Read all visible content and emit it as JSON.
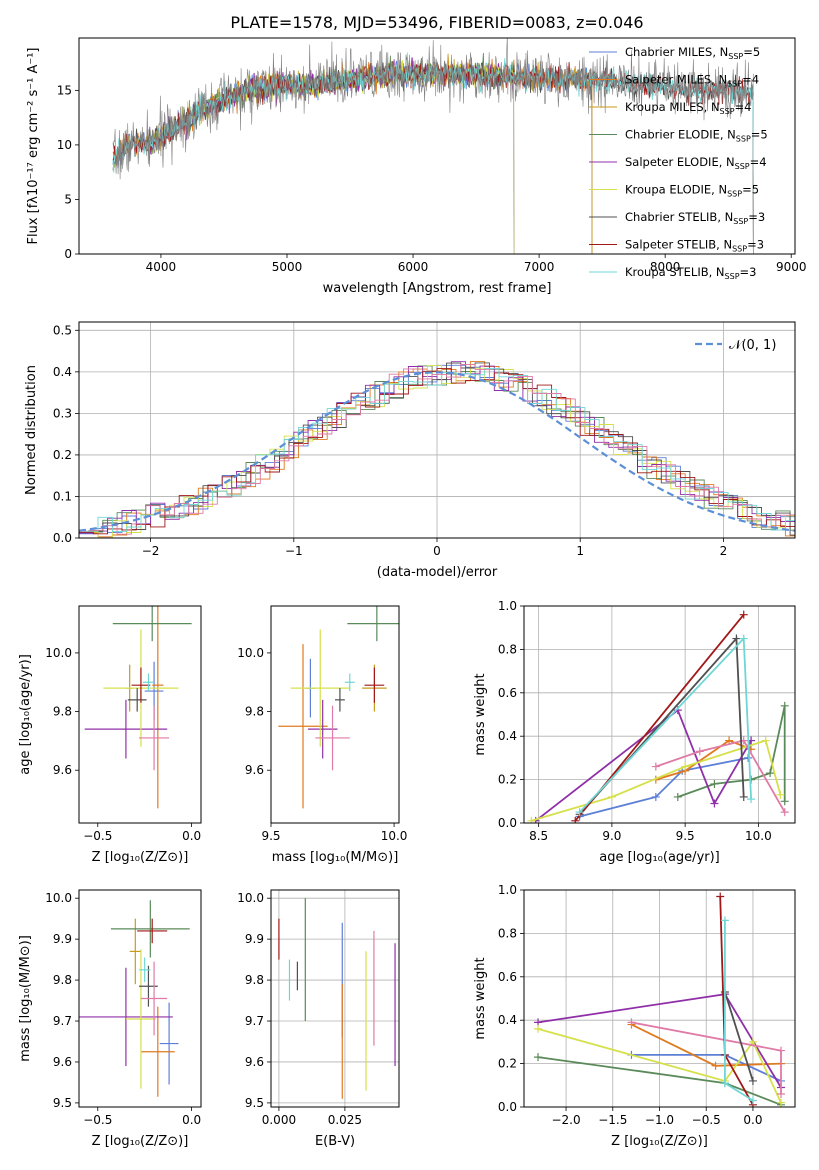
{
  "title": "PLATE=1578, MJD=53496, FIBERID=0083, z=0.046",
  "colors": [
    "#5b7fd6",
    "#e07a1f",
    "#c99a1a",
    "#5a8a5a",
    "#9030a8",
    "#d6e04a",
    "#505050",
    "#a01818",
    "#6fd6d6",
    "#e07aa6"
  ],
  "chart_data": [
    {
      "id": "spectrum",
      "type": "line",
      "title": "PLATE=1578, MJD=53496, FIBERID=0083, z=0.046",
      "xlabel": "wavelength [Angstrom, rest frame]",
      "ylabel": "Flux [fλ10⁻¹⁷ erg cm⁻² s⁻¹ A⁻¹]",
      "xlim": [
        3350,
        9030
      ],
      "ylim": [
        0,
        19.8
      ],
      "xticks": [
        4000,
        5000,
        6000,
        7000,
        8000,
        9000
      ],
      "yticks": [
        0,
        5,
        10,
        15
      ],
      "legend_position": "right",
      "continuum": [
        [
          3620,
          8.5
        ],
        [
          3700,
          9.5
        ],
        [
          3800,
          10.2
        ],
        [
          3900,
          10.0
        ],
        [
          4000,
          10.8
        ],
        [
          4150,
          12.0
        ],
        [
          4300,
          13.0
        ],
        [
          4500,
          14.2
        ],
        [
          4700,
          15.0
        ],
        [
          5000,
          15.5
        ],
        [
          5200,
          15.5
        ],
        [
          5500,
          16.0
        ],
        [
          5800,
          16.4
        ],
        [
          6100,
          16.6
        ],
        [
          6400,
          16.5
        ],
        [
          6700,
          16.3
        ],
        [
          7000,
          16.2
        ],
        [
          7300,
          16.0
        ],
        [
          7600,
          15.8
        ],
        [
          7900,
          15.4
        ],
        [
          8200,
          15.0
        ],
        [
          8500,
          15.0
        ],
        [
          8700,
          14.8
        ]
      ],
      "series": [
        {
          "name": "Chabrier MILES, N_SSP=5",
          "start": 3620,
          "end": 7420
        },
        {
          "name": "Salpeter MILES, N_SSP=4",
          "start": 3620,
          "end": 7420
        },
        {
          "name": "Kroupa MILES, N_SSP=4",
          "start": 3620,
          "end": 7420
        },
        {
          "name": "Chabrier ELODIE, N_SSP=5",
          "start": 3900,
          "end": 6800
        },
        {
          "name": "Salpeter ELODIE, N_SSP=4",
          "start": 3900,
          "end": 6800
        },
        {
          "name": "Kroupa ELODIE, N_SSP=5",
          "start": 3900,
          "end": 6800
        },
        {
          "name": "Chabrier STELIB, N_SSP=3",
          "start": 3620,
          "end": 8700
        },
        {
          "name": "Salpeter STELIB, N_SSP=3",
          "start": 3620,
          "end": 8700
        },
        {
          "name": "Kroupa STELIB, N_SSP=3",
          "start": 3620,
          "end": 8700
        }
      ],
      "legend": [
        {
          "base": "Chabrier MILES, N",
          "sub": "SSP",
          "tail": "=5"
        },
        {
          "base": "Salpeter MILES, N",
          "sub": "SSP",
          "tail": "=4"
        },
        {
          "base": "Kroupa MILES, N",
          "sub": "SSP",
          "tail": "=4"
        },
        {
          "base": "Chabrier ELODIE, N",
          "sub": "SSP",
          "tail": "=5"
        },
        {
          "base": "Salpeter ELODIE, N",
          "sub": "SSP",
          "tail": "=4"
        },
        {
          "base": "Kroupa ELODIE, N",
          "sub": "SSP",
          "tail": "=5"
        },
        {
          "base": "Chabrier STELIB, N",
          "sub": "SSP",
          "tail": "=3"
        },
        {
          "base": "Salpeter STELIB, N",
          "sub": "SSP",
          "tail": "=3"
        },
        {
          "base": "Kroupa STELIB, N",
          "sub": "SSP",
          "tail": "=3"
        }
      ]
    },
    {
      "id": "residuals",
      "type": "line",
      "xlabel": "(data-model)/error",
      "ylabel": "Normed distribution",
      "xlim": [
        -2.5,
        2.5
      ],
      "ylim": [
        0,
        0.52
      ],
      "xticks": [
        -2,
        -1,
        0,
        1,
        2
      ],
      "yticks": [
        0.0,
        0.1,
        0.2,
        0.3,
        0.4,
        0.5
      ],
      "grid": true,
      "legend_position": "top-right",
      "legend": "𝒩(0, 1)",
      "bin_width": 0.1,
      "histogram_series": 9
    },
    {
      "id": "z-age",
      "type": "scatter",
      "xlabel": "Z [log₁₀(Z/Z⊙)]",
      "ylabel": "age  [log₁₀(age/yr)]",
      "xlim": [
        -0.6,
        0.05
      ],
      "ylim": [
        9.42,
        10.16
      ],
      "xticks": [
        -0.5,
        0.0
      ],
      "yticks": [
        9.6,
        9.8,
        10.0
      ],
      "points": [
        {
          "x": -0.2,
          "xerr": 0.05,
          "y": 9.87,
          "yerr": 0.1
        },
        {
          "x": -0.18,
          "xerr": 0.03,
          "y": 9.89,
          "yerr": 0.42
        },
        {
          "x": -0.33,
          "xerr": 0.02,
          "y": 9.88,
          "yerr": 0.08
        },
        {
          "x": -0.21,
          "xerr": 0.21,
          "y": 10.1,
          "yerr": 0.06
        },
        {
          "x": -0.35,
          "xerr": 0.22,
          "y": 9.74,
          "yerr": 0.1
        },
        {
          "x": -0.27,
          "xerr": 0.2,
          "y": 9.88,
          "yerr": 0.2
        },
        {
          "x": -0.29,
          "xerr": 0.05,
          "y": 9.84,
          "yerr": 0.04
        },
        {
          "x": -0.27,
          "xerr": 0.05,
          "y": 9.89,
          "yerr": 0.06
        },
        {
          "x": -0.23,
          "xerr": 0.03,
          "y": 9.9,
          "yerr": 0.03
        },
        {
          "x": -0.2,
          "xerr": 0.08,
          "y": 9.71,
          "yerr": 0.11
        }
      ]
    },
    {
      "id": "mass-age",
      "type": "scatter",
      "xlabel": "mass [log₁₀(M/M⊙)]",
      "ylabel": "",
      "xlim": [
        9.5,
        10.02
      ],
      "ylim": [
        9.42,
        10.16
      ],
      "xticks": [
        9.5,
        10.0
      ],
      "yticks": [
        9.6,
        9.8,
        10.0
      ],
      "points": [
        {
          "x": 9.66,
          "xerr": 0.02,
          "y": 9.88,
          "yerr": 0.1
        },
        {
          "x": 9.63,
          "xerr": 0.1,
          "y": 9.75,
          "yerr": 0.28
        },
        {
          "x": 9.92,
          "xerr": 0.05,
          "y": 9.88,
          "yerr": 0.08
        },
        {
          "x": 9.93,
          "xerr": 0.12,
          "y": 10.1,
          "yerr": 0.06
        },
        {
          "x": 9.71,
          "xerr": 0.06,
          "y": 9.74,
          "yerr": 0.1
        },
        {
          "x": 9.7,
          "xerr": 0.12,
          "y": 9.88,
          "yerr": 0.2
        },
        {
          "x": 9.78,
          "xerr": 0.02,
          "y": 9.84,
          "yerr": 0.04
        },
        {
          "x": 9.92,
          "xerr": 0.04,
          "y": 9.89,
          "yerr": 0.06
        },
        {
          "x": 9.82,
          "xerr": 0.02,
          "y": 9.9,
          "yerr": 0.03
        },
        {
          "x": 9.75,
          "xerr": 0.07,
          "y": 9.71,
          "yerr": 0.11
        }
      ]
    },
    {
      "id": "age-weight",
      "type": "line",
      "xlabel": "age  [log₁₀(age/yr)]",
      "ylabel": "mass weight",
      "xlim": [
        8.4,
        10.25
      ],
      "ylim": [
        0,
        1.0
      ],
      "xticks": [
        8.5,
        9.0,
        9.5,
        10.0
      ],
      "yticks": [
        0.0,
        0.2,
        0.4,
        0.6,
        0.8,
        1.0
      ],
      "grid": true,
      "series": [
        {
          "color": 0,
          "points": [
            [
              8.78,
              0.03
            ],
            [
              9.3,
              0.12
            ],
            [
              9.48,
              0.24
            ],
            [
              9.93,
              0.3
            ],
            [
              9.95,
              0.38
            ]
          ]
        },
        {
          "color": 1,
          "points": [
            [
              9.3,
              0.2
            ],
            [
              9.5,
              0.24
            ],
            [
              9.8,
              0.38
            ],
            [
              9.95,
              0.34
            ]
          ]
        },
        {
          "color": 3,
          "points": [
            [
              9.45,
              0.12
            ],
            [
              9.7,
              0.18
            ],
            [
              9.95,
              0.2
            ],
            [
              10.08,
              0.23
            ],
            [
              10.18,
              0.54
            ],
            [
              10.18,
              0.1
            ]
          ]
        },
        {
          "color": 4,
          "points": [
            [
              8.48,
              0.01
            ],
            [
              9.45,
              0.52
            ],
            [
              9.7,
              0.09
            ],
            [
              9.95,
              0.38
            ]
          ]
        },
        {
          "color": 5,
          "points": [
            [
              8.45,
              0.01
            ],
            [
              9.0,
              0.12
            ],
            [
              9.5,
              0.26
            ],
            [
              10.05,
              0.38
            ],
            [
              10.15,
              0.13
            ]
          ]
        },
        {
          "color": 9,
          "points": [
            [
              9.3,
              0.26
            ],
            [
              9.6,
              0.33
            ],
            [
              9.9,
              0.38
            ],
            [
              10.18,
              0.05
            ]
          ]
        },
        {
          "color": 6,
          "points": [
            [
              8.78,
              0.04
            ],
            [
              9.85,
              0.85
            ],
            [
              9.9,
              0.12
            ]
          ]
        },
        {
          "color": 7,
          "points": [
            [
              8.75,
              0.01
            ],
            [
              9.9,
              0.96
            ]
          ]
        },
        {
          "color": 8,
          "points": [
            [
              8.78,
              0.05
            ],
            [
              9.9,
              0.85
            ],
            [
              9.95,
              0.11
            ]
          ]
        }
      ]
    },
    {
      "id": "z-mass",
      "type": "scatter",
      "xlabel": "Z [log₁₀(Z/Z⊙)]",
      "ylabel": "mass [log₁₀(M/M⊙)]",
      "xlim": [
        -0.6,
        0.05
      ],
      "ylim": [
        9.49,
        10.02
      ],
      "xticks": [
        -0.5,
        0.0
      ],
      "yticks": [
        9.5,
        9.6,
        9.7,
        9.8,
        9.9,
        10.0
      ],
      "points": [
        {
          "x": -0.12,
          "xerr": 0.05,
          "y": 9.645,
          "yerr": 0.1
        },
        {
          "x": -0.18,
          "xerr": 0.09,
          "y": 9.625,
          "yerr": 0.11
        },
        {
          "x": -0.3,
          "xerr": 0.03,
          "y": 9.87,
          "yerr": 0.08
        },
        {
          "x": -0.22,
          "xerr": 0.21,
          "y": 9.925,
          "yerr": 0.07
        },
        {
          "x": -0.35,
          "xerr": 0.25,
          "y": 9.71,
          "yerr": 0.12
        },
        {
          "x": -0.27,
          "xerr": 0.08,
          "y": 9.705,
          "yerr": 0.17
        },
        {
          "x": -0.23,
          "xerr": 0.05,
          "y": 9.785,
          "yerr": 0.05
        },
        {
          "x": -0.21,
          "xerr": 0.08,
          "y": 9.92,
          "yerr": 0.03
        },
        {
          "x": -0.25,
          "xerr": 0.03,
          "y": 9.825,
          "yerr": 0.03
        },
        {
          "x": -0.2,
          "xerr": 0.07,
          "y": 9.755,
          "yerr": 0.09
        }
      ]
    },
    {
      "id": "ebv-mass",
      "type": "scatter",
      "xlabel": "E(B-V)",
      "ylabel": "",
      "xlim": [
        -0.003,
        0.0455
      ],
      "ylim": [
        9.49,
        10.02
      ],
      "xticks": [
        0.0,
        0.025
      ],
      "xticklabels": [
        "0.000",
        "0.025"
      ],
      "yticks": [
        9.5,
        9.6,
        9.7,
        9.8,
        9.9,
        10.0
      ],
      "grid": true,
      "points": [
        {
          "x": 0.024,
          "y": 9.8,
          "yerr": 0.14,
          "color": 0
        },
        {
          "x": 0.024,
          "y": 9.65,
          "yerr": 0.14,
          "color": 1
        },
        {
          "x": 0.0,
          "y": 9.9,
          "yerr": 0.05,
          "color": 7
        },
        {
          "x": 0.01,
          "y": 9.85,
          "yerr": 0.15,
          "color": 3
        },
        {
          "x": 0.044,
          "y": 9.74,
          "yerr": 0.15,
          "color": 4
        },
        {
          "x": 0.033,
          "y": 9.7,
          "yerr": 0.17,
          "color": 5
        },
        {
          "x": 0.007,
          "y": 9.81,
          "yerr": 0.035,
          "color": 6
        },
        {
          "x": 0.004,
          "y": 9.8,
          "yerr": 0.05,
          "color": 8
        },
        {
          "x": 0.036,
          "y": 9.78,
          "yerr": 0.14,
          "color": 9
        }
      ]
    },
    {
      "id": "z-weight",
      "type": "line",
      "xlabel": "Z [log₁₀(Z/Z⊙)]",
      "ylabel": "mass weight",
      "xlim": [
        -2.45,
        0.45
      ],
      "ylim": [
        0,
        1.0
      ],
      "xticks": [
        -2.0,
        -1.5,
        -1.0,
        -0.5,
        0.0
      ],
      "xticklabels": [
        "−2.0",
        "−1.5",
        "−1.0",
        "−0.5",
        "0.0"
      ],
      "yticks": [
        0.0,
        0.2,
        0.4,
        0.6,
        0.8,
        1.0
      ],
      "grid": true,
      "series": [
        {
          "color": 0,
          "points": [
            [
              -1.3,
              0.24
            ],
            [
              -0.3,
              0.24
            ],
            [
              0.3,
              0.12
            ]
          ]
        },
        {
          "color": 1,
          "points": [
            [
              -1.3,
              0.38
            ],
            [
              -0.4,
              0.19
            ],
            [
              0.3,
              0.2
            ]
          ]
        },
        {
          "color": 3,
          "points": [
            [
              -2.3,
              0.23
            ],
            [
              -0.3,
              0.11
            ],
            [
              0.3,
              0.01
            ]
          ]
        },
        {
          "color": 4,
          "points": [
            [
              -2.3,
              0.39
            ],
            [
              -0.3,
              0.52
            ],
            [
              0.3,
              0.09
            ]
          ]
        },
        {
          "color": 5,
          "points": [
            [
              -2.3,
              0.36
            ],
            [
              -0.3,
              0.12
            ],
            [
              0.0,
              0.3
            ],
            [
              0.3,
              0.02
            ]
          ]
        },
        {
          "color": 9,
          "points": [
            [
              -1.3,
              0.39
            ],
            [
              0.3,
              0.26
            ],
            [
              0.3,
              0.06
            ]
          ]
        },
        {
          "color": 6,
          "points": [
            [
              -0.3,
              0.53
            ],
            [
              0.0,
              0.12
            ]
          ]
        },
        {
          "color": 7,
          "points": [
            [
              -0.35,
              0.97
            ],
            [
              -0.3,
              0.24
            ],
            [
              0.0,
              0.01
            ]
          ]
        },
        {
          "color": 8,
          "points": [
            [
              -0.3,
              0.86
            ],
            [
              -0.3,
              0.11
            ],
            [
              0.0,
              0.03
            ]
          ]
        }
      ]
    }
  ]
}
